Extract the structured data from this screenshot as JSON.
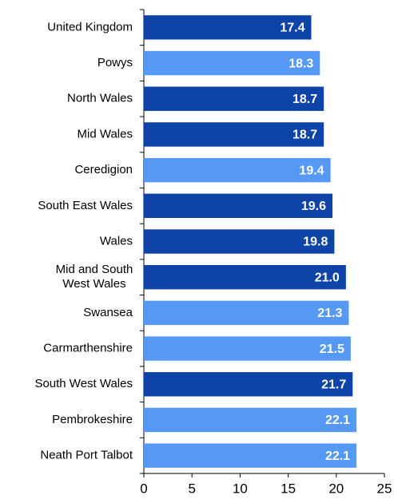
{
  "chart_data": {
    "type": "barh",
    "categories": [
      "United Kingdom",
      "Powys",
      "North Wales",
      "Mid Wales",
      "Ceredigion",
      "South East Wales",
      "Wales",
      "Mid and South\nWest Wales",
      "Swansea",
      "Carmarthenshire",
      "South West Wales",
      "Pembrokeshire",
      "Neath Port Talbot"
    ],
    "values": [
      17.4,
      18.3,
      18.7,
      18.7,
      19.4,
      19.6,
      19.8,
      21.0,
      21.3,
      21.5,
      21.7,
      22.1,
      22.1
    ],
    "value_labels": [
      "17.4",
      "18.3",
      "18.7",
      "18.7",
      "19.4",
      "19.6",
      "19.8",
      "21.0",
      "21.3",
      "21.5",
      "21.7",
      "22.1",
      "22.1"
    ],
    "colors": [
      "#0e44a8",
      "#5599f5",
      "#0e44a8",
      "#0e44a8",
      "#5599f5",
      "#0e44a8",
      "#0e44a8",
      "#0e44a8",
      "#5599f5",
      "#5599f5",
      "#0e44a8",
      "#5599f5",
      "#5599f5"
    ],
    "xlim": [
      0,
      25
    ],
    "xticks": [
      0,
      5,
      10,
      15,
      20,
      25
    ]
  }
}
